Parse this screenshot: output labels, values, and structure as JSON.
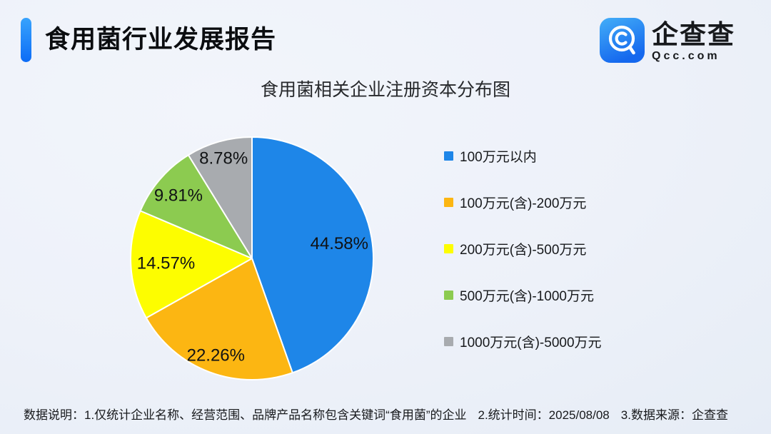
{
  "header": {
    "title": "食用菌行业发展报告",
    "logo": {
      "brand": "企查查",
      "domain": "Qcc.com",
      "icon": "qcc-magnifier-icon"
    }
  },
  "colors": {
    "accent_blue": "#0c6cf6",
    "brand_blue": "#1877f2",
    "background": "#edf1f9"
  },
  "chart_data": {
    "type": "pie",
    "title": "食用菌相关企业注册资本分布图",
    "start_angle_deg": 0,
    "direction": "clockwise",
    "legend_position": "right",
    "slices": [
      {
        "label": "100万元以内",
        "value": 44.58,
        "display": "44.58%",
        "color": "#1e86e8"
      },
      {
        "label": "100万元(含)-200万元",
        "value": 22.26,
        "display": "22.26%",
        "color": "#fcb612"
      },
      {
        "label": "200万元(含)-500万元",
        "value": 14.57,
        "display": "14.57%",
        "color": "#fdfd00"
      },
      {
        "label": "500万元(含)-1000万元",
        "value": 9.81,
        "display": "9.81%",
        "color": "#8ccb50"
      },
      {
        "label": "1000万元(含)-5000万元",
        "value": 8.78,
        "display": "8.78%",
        "color": "#a8abaf"
      }
    ],
    "label_radius_frac": [
      0.73,
      0.85,
      0.71,
      0.8,
      0.86
    ]
  },
  "footer": {
    "prefix": "数据说明：",
    "notes": [
      "1.仅统计企业名称、经营范围、品牌产品名称包含关键词“食用菌”的企业",
      "2.统计时间：2025/08/08",
      "3.数据来源：企查查"
    ]
  }
}
